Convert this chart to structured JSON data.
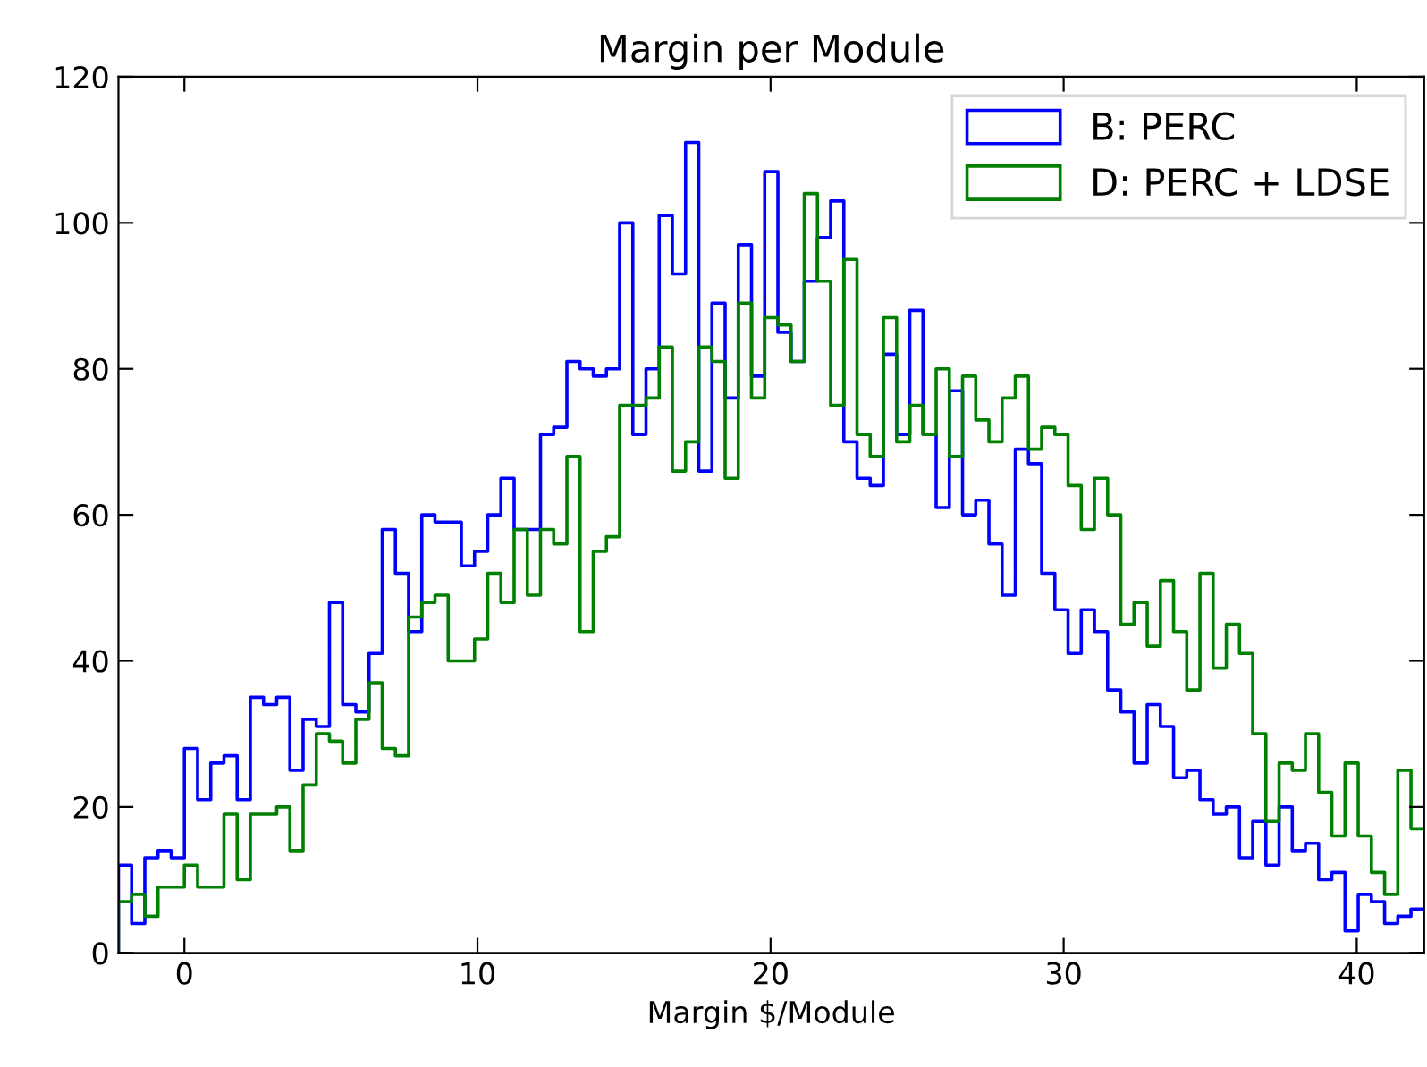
{
  "chart_data": {
    "type": "histogram",
    "title": "Margin per Module",
    "xlabel": "Margin $/Module",
    "bins": [
      -2.25,
      -1.8,
      -1.35,
      -0.9,
      -0.45,
      0,
      0.45,
      0.9,
      1.35,
      1.8,
      2.25,
      2.7,
      3.15,
      3.6,
      4.05,
      4.5,
      4.95,
      5.4,
      5.85,
      6.3,
      6.75,
      7.2,
      7.65,
      8.1,
      8.55,
      9,
      9.45,
      9.9,
      10.35,
      10.8,
      11.25,
      11.7,
      12.15,
      12.6,
      13.05,
      13.5,
      13.95,
      14.4,
      14.85,
      15.3,
      15.75,
      16.2,
      16.65,
      17.1,
      17.55,
      18,
      18.45,
      18.9,
      19.35,
      19.8,
      20.25,
      20.7,
      21.15,
      21.6,
      22.05,
      22.5,
      22.95,
      23.4,
      23.85,
      24.3,
      24.75,
      25.2,
      25.65,
      26.1,
      26.55,
      27,
      27.45,
      27.9,
      28.35,
      28.8,
      29.25,
      29.7,
      30.15,
      30.6,
      31.05,
      31.5,
      31.95,
      32.4,
      32.85,
      33.3,
      33.75,
      34.2,
      34.65,
      35.1,
      35.55,
      36,
      36.45,
      36.9,
      37.35,
      37.8,
      38.25,
      38.7,
      39.15,
      39.6,
      40.05,
      40.5,
      40.95,
      41.4,
      41.85,
      42.3
    ],
    "series": [
      {
        "name": "B: PERC",
        "color": "#0000ff",
        "values": [
          12,
          4,
          13,
          14,
          13,
          28,
          21,
          26,
          27,
          21,
          35,
          34,
          35,
          25,
          32,
          31,
          48,
          34,
          33,
          41,
          58,
          52,
          44,
          60,
          59,
          59,
          53,
          55,
          60,
          65,
          58,
          58,
          71,
          72,
          81,
          80,
          79,
          80,
          100,
          71,
          80,
          101,
          93,
          111,
          66,
          89,
          76,
          97,
          79,
          107,
          85,
          81,
          92,
          98,
          103,
          70,
          65,
          64,
          82,
          71,
          88,
          71,
          61,
          77,
          60,
          62,
          56,
          49,
          69,
          67,
          52,
          47,
          41,
          47,
          44,
          36,
          33,
          26,
          34,
          31,
          24,
          25,
          21,
          19,
          20,
          13,
          18,
          12,
          20,
          14,
          15,
          10,
          11,
          3,
          8,
          7,
          4,
          5,
          6
        ]
      },
      {
        "name": "D: PERC + LDSE",
        "color": "#008000",
        "values": [
          7,
          8,
          5,
          9,
          9,
          12,
          9,
          9,
          19,
          10,
          19,
          19,
          20,
          14,
          23,
          30,
          29,
          26,
          32,
          37,
          28,
          27,
          46,
          48,
          49,
          40,
          40,
          43,
          52,
          48,
          58,
          49,
          58,
          56,
          68,
          44,
          55,
          57,
          75,
          75,
          76,
          83,
          66,
          70,
          83,
          81,
          65,
          89,
          76,
          87,
          86,
          81,
          104,
          92,
          75,
          95,
          71,
          68,
          87,
          70,
          75,
          71,
          80,
          68,
          79,
          73,
          70,
          76,
          79,
          69,
          72,
          71,
          64,
          58,
          65,
          60,
          45,
          48,
          42,
          51,
          44,
          36,
          52,
          39,
          45,
          41,
          30,
          18,
          26,
          25,
          30,
          22,
          16,
          26,
          16,
          11,
          8,
          25,
          17
        ]
      }
    ],
    "xlim": [
      -2.25,
      42.3
    ],
    "ylim": [
      0,
      120
    ],
    "xticks": [
      0,
      10,
      20,
      30,
      40
    ],
    "yticks": [
      0,
      20,
      40,
      60,
      80,
      100,
      120
    ],
    "legend": "top right"
  }
}
